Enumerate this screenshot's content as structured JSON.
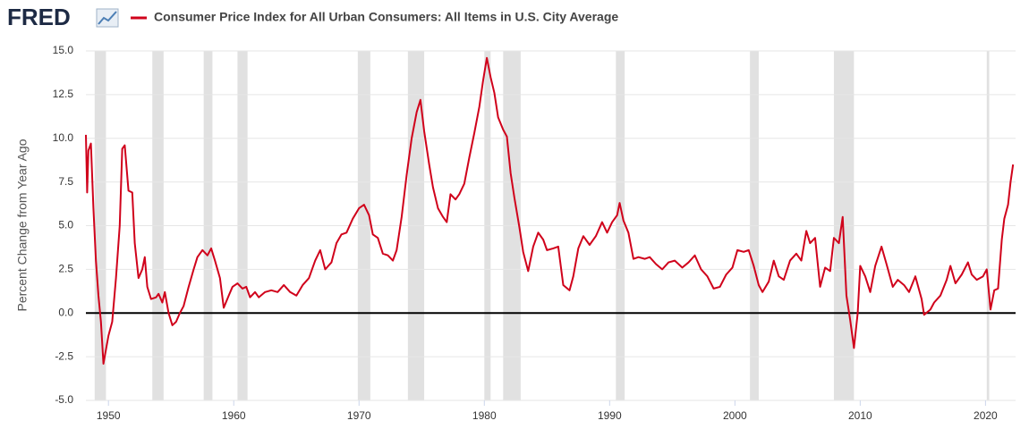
{
  "logo": "FRED",
  "chart_data": {
    "type": "line",
    "title": "Consumer Price Index for All Urban Consumers: All Items in U.S. City Average",
    "y_label": "Percent Change from Year Ago",
    "xlim": [
      1948.2,
      2022.4
    ],
    "ylim": [
      -5,
      15
    ],
    "xticks": [
      1950,
      1960,
      1970,
      1980,
      1990,
      2000,
      2010,
      2020
    ],
    "yticks": [
      {
        "value": -5,
        "label": "-5.0"
      },
      -2.5,
      {
        "value": 0,
        "label": "0.0"
      },
      2.5,
      {
        "value": 5,
        "label": "5.0"
      },
      7.5,
      {
        "value": 10,
        "label": "10.0"
      },
      12.5,
      {
        "value": 15,
        "label": "15.0"
      }
    ],
    "grid": true,
    "recessions": [
      {
        "start": 1948.9,
        "end": 1949.8
      },
      {
        "start": 1953.5,
        "end": 1954.4
      },
      {
        "start": 1957.6,
        "end": 1958.3
      },
      {
        "start": 1960.3,
        "end": 1961.1
      },
      {
        "start": 1969.9,
        "end": 1970.9
      },
      {
        "start": 1973.9,
        "end": 1975.2
      },
      {
        "start": 1980.0,
        "end": 1980.5
      },
      {
        "start": 1981.5,
        "end": 1982.9
      },
      {
        "start": 1990.5,
        "end": 1991.2
      },
      {
        "start": 2001.2,
        "end": 2001.9
      },
      {
        "start": 2007.9,
        "end": 2009.5
      },
      {
        "start": 2020.1,
        "end": 2020.3
      }
    ],
    "x": [
      1948.2,
      1948.3,
      1948.4,
      1948.6,
      1948.8,
      1949.0,
      1949.2,
      1949.4,
      1949.6,
      1949.8,
      1950.0,
      1950.3,
      1950.6,
      1950.9,
      1951.1,
      1951.3,
      1951.6,
      1951.9,
      1952.1,
      1952.4,
      1952.7,
      1952.9,
      1953.1,
      1953.4,
      1953.8,
      1954.0,
      1954.3,
      1954.5,
      1954.8,
      1955.1,
      1955.4,
      1955.7,
      1956.0,
      1956.4,
      1956.8,
      1957.1,
      1957.5,
      1957.9,
      1958.2,
      1958.5,
      1958.9,
      1959.2,
      1959.6,
      1959.9,
      1960.3,
      1960.7,
      1961.0,
      1961.3,
      1961.7,
      1962.0,
      1962.5,
      1963.0,
      1963.5,
      1964.0,
      1964.5,
      1965.0,
      1965.5,
      1966.0,
      1966.5,
      1966.9,
      1967.3,
      1967.8,
      1968.2,
      1968.6,
      1969.0,
      1969.5,
      1970.0,
      1970.4,
      1970.8,
      1971.1,
      1971.5,
      1971.9,
      1972.3,
      1972.7,
      1973.0,
      1973.4,
      1973.8,
      1974.2,
      1974.6,
      1974.9,
      1975.2,
      1975.6,
      1975.9,
      1976.3,
      1976.7,
      1977.0,
      1977.3,
      1977.7,
      1978.0,
      1978.4,
      1978.8,
      1979.2,
      1979.6,
      1979.9,
      1980.2,
      1980.5,
      1980.8,
      1981.1,
      1981.5,
      1981.8,
      1982.1,
      1982.4,
      1982.8,
      1983.1,
      1983.5,
      1983.9,
      1984.3,
      1984.7,
      1985.0,
      1985.5,
      1985.9,
      1986.3,
      1986.8,
      1987.1,
      1987.5,
      1987.9,
      1988.4,
      1988.9,
      1989.4,
      1989.8,
      1990.2,
      1990.6,
      1990.8,
      1991.1,
      1991.5,
      1991.9,
      1992.3,
      1992.8,
      1993.2,
      1993.7,
      1994.2,
      1994.7,
      1995.2,
      1995.8,
      1996.3,
      1996.8,
      1997.3,
      1997.8,
      1998.3,
      1998.8,
      1999.3,
      1999.8,
      2000.2,
      2000.7,
      2001.1,
      2001.5,
      2001.9,
      2002.2,
      2002.7,
      2003.1,
      2003.5,
      2003.9,
      2004.4,
      2004.9,
      2005.3,
      2005.7,
      2006.0,
      2006.4,
      2006.8,
      2007.2,
      2007.6,
      2007.9,
      2008.3,
      2008.6,
      2008.9,
      2009.2,
      2009.5,
      2009.8,
      2010.0,
      2010.4,
      2010.8,
      2011.2,
      2011.7,
      2012.1,
      2012.6,
      2013.0,
      2013.5,
      2013.9,
      2014.4,
      2014.9,
      2015.1,
      2015.6,
      2015.9,
      2016.4,
      2016.9,
      2017.2,
      2017.6,
      2018.1,
      2018.6,
      2018.9,
      2019.3,
      2019.8,
      2020.1,
      2020.4,
      2020.7,
      2021.0,
      2021.3,
      2021.5,
      2021.8,
      2022.0,
      2022.2
    ],
    "series": [
      {
        "name": "Consumer Price Index for All Urban Consumers: All Items in U.S. City Average",
        "color": "#d0021b",
        "values": [
          10.2,
          6.9,
          9.3,
          9.7,
          6.0,
          3.0,
          1.0,
          -0.5,
          -2.9,
          -2.1,
          -1.3,
          -0.5,
          2.0,
          5.0,
          9.4,
          9.6,
          7.0,
          6.9,
          4.0,
          2.0,
          2.5,
          3.2,
          1.5,
          0.8,
          0.9,
          1.1,
          0.6,
          1.2,
          0.0,
          -0.7,
          -0.5,
          0.0,
          0.4,
          1.5,
          2.5,
          3.2,
          3.6,
          3.3,
          3.7,
          3.0,
          2.0,
          0.3,
          1.0,
          1.5,
          1.7,
          1.4,
          1.5,
          0.9,
          1.2,
          0.9,
          1.2,
          1.3,
          1.2,
          1.6,
          1.2,
          1.0,
          1.6,
          2.0,
          3.0,
          3.6,
          2.5,
          2.9,
          4.0,
          4.5,
          4.6,
          5.4,
          6.0,
          6.2,
          5.6,
          4.5,
          4.3,
          3.4,
          3.3,
          3.0,
          3.6,
          5.5,
          7.9,
          10.0,
          11.5,
          12.2,
          10.4,
          8.5,
          7.2,
          6.0,
          5.5,
          5.2,
          6.8,
          6.5,
          6.8,
          7.4,
          8.9,
          10.3,
          11.8,
          13.3,
          14.6,
          13.5,
          12.6,
          11.2,
          10.5,
          10.1,
          8.0,
          6.6,
          4.9,
          3.5,
          2.4,
          3.8,
          4.6,
          4.2,
          3.6,
          3.7,
          3.8,
          1.6,
          1.3,
          2.1,
          3.7,
          4.4,
          3.9,
          4.4,
          5.2,
          4.6,
          5.2,
          5.6,
          6.3,
          5.3,
          4.6,
          3.1,
          3.2,
          3.1,
          3.2,
          2.8,
          2.5,
          2.9,
          3.0,
          2.6,
          2.9,
          3.3,
          2.5,
          2.1,
          1.4,
          1.5,
          2.2,
          2.6,
          3.6,
          3.5,
          3.6,
          2.7,
          1.6,
          1.2,
          1.8,
          3.0,
          2.1,
          1.9,
          3.0,
          3.4,
          3.0,
          4.7,
          4.0,
          4.3,
          1.5,
          2.6,
          2.4,
          4.3,
          4.0,
          5.5,
          1.0,
          -0.4,
          -2.0,
          0.0,
          2.7,
          2.1,
          1.2,
          2.7,
          3.8,
          2.8,
          1.5,
          1.9,
          1.6,
          1.2,
          2.1,
          0.8,
          -0.1,
          0.2,
          0.6,
          1.0,
          1.9,
          2.7,
          1.7,
          2.2,
          2.9,
          2.2,
          1.9,
          2.1,
          2.5,
          0.2,
          1.3,
          1.4,
          4.2,
          5.4,
          6.2,
          7.5,
          8.5
        ]
      }
    ]
  }
}
